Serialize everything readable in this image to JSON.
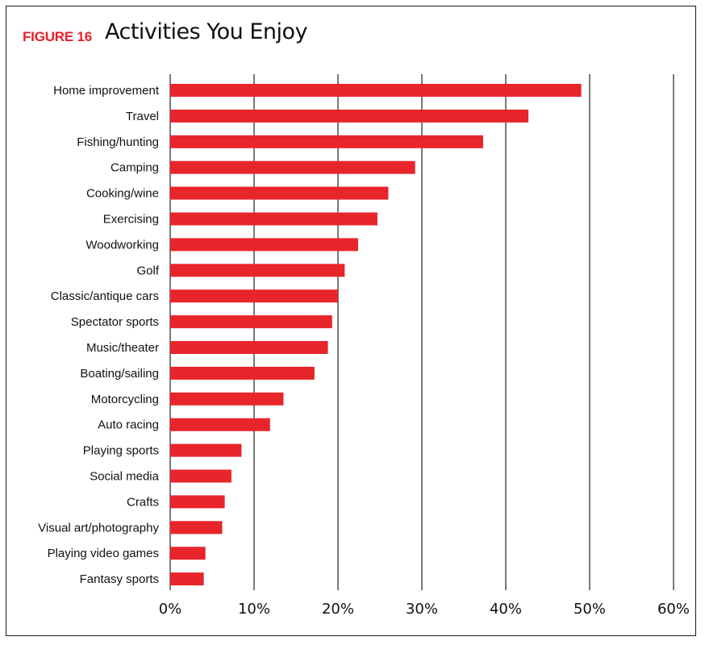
{
  "header": {
    "figure_label": "FIGURE 16",
    "title": "Activities You Enjoy"
  },
  "colors": {
    "accent": "#e8202a",
    "bar": "#e8252b",
    "gridline": "#222222",
    "bar_overlay_dark": "#8a4a22",
    "bar_ghost_pink": "#f6c4f0"
  },
  "chart_data": {
    "type": "bar",
    "orientation": "horizontal",
    "title": "Activities You Enjoy",
    "xlabel": "",
    "ylabel": "",
    "xlim": [
      0,
      60
    ],
    "grid": true,
    "categories": [
      "Home improvement",
      "Travel",
      "Fishing/hunting",
      "Camping",
      "Cooking/wine",
      "Exercising",
      "Woodworking",
      "Golf",
      "Classic/antique cars",
      "Spectator sports",
      "Music/theater",
      "Boating/sailing",
      "Motorcycling",
      "Auto racing",
      "Playing sports",
      "Social media",
      "Crafts",
      "Visual art/photography",
      "Playing video games",
      "Fantasy sports"
    ],
    "values": [
      49,
      42.7,
      37.3,
      29.2,
      26,
      24.7,
      22.4,
      20.8,
      20,
      19.3,
      18.8,
      17.2,
      13.5,
      11.9,
      8.5,
      7.3,
      6.5,
      6.2,
      4.2,
      4
    ],
    "x_ticks": [
      "0%",
      "10%",
      "20%",
      "30%",
      "40%",
      "50%",
      "60%"
    ]
  }
}
